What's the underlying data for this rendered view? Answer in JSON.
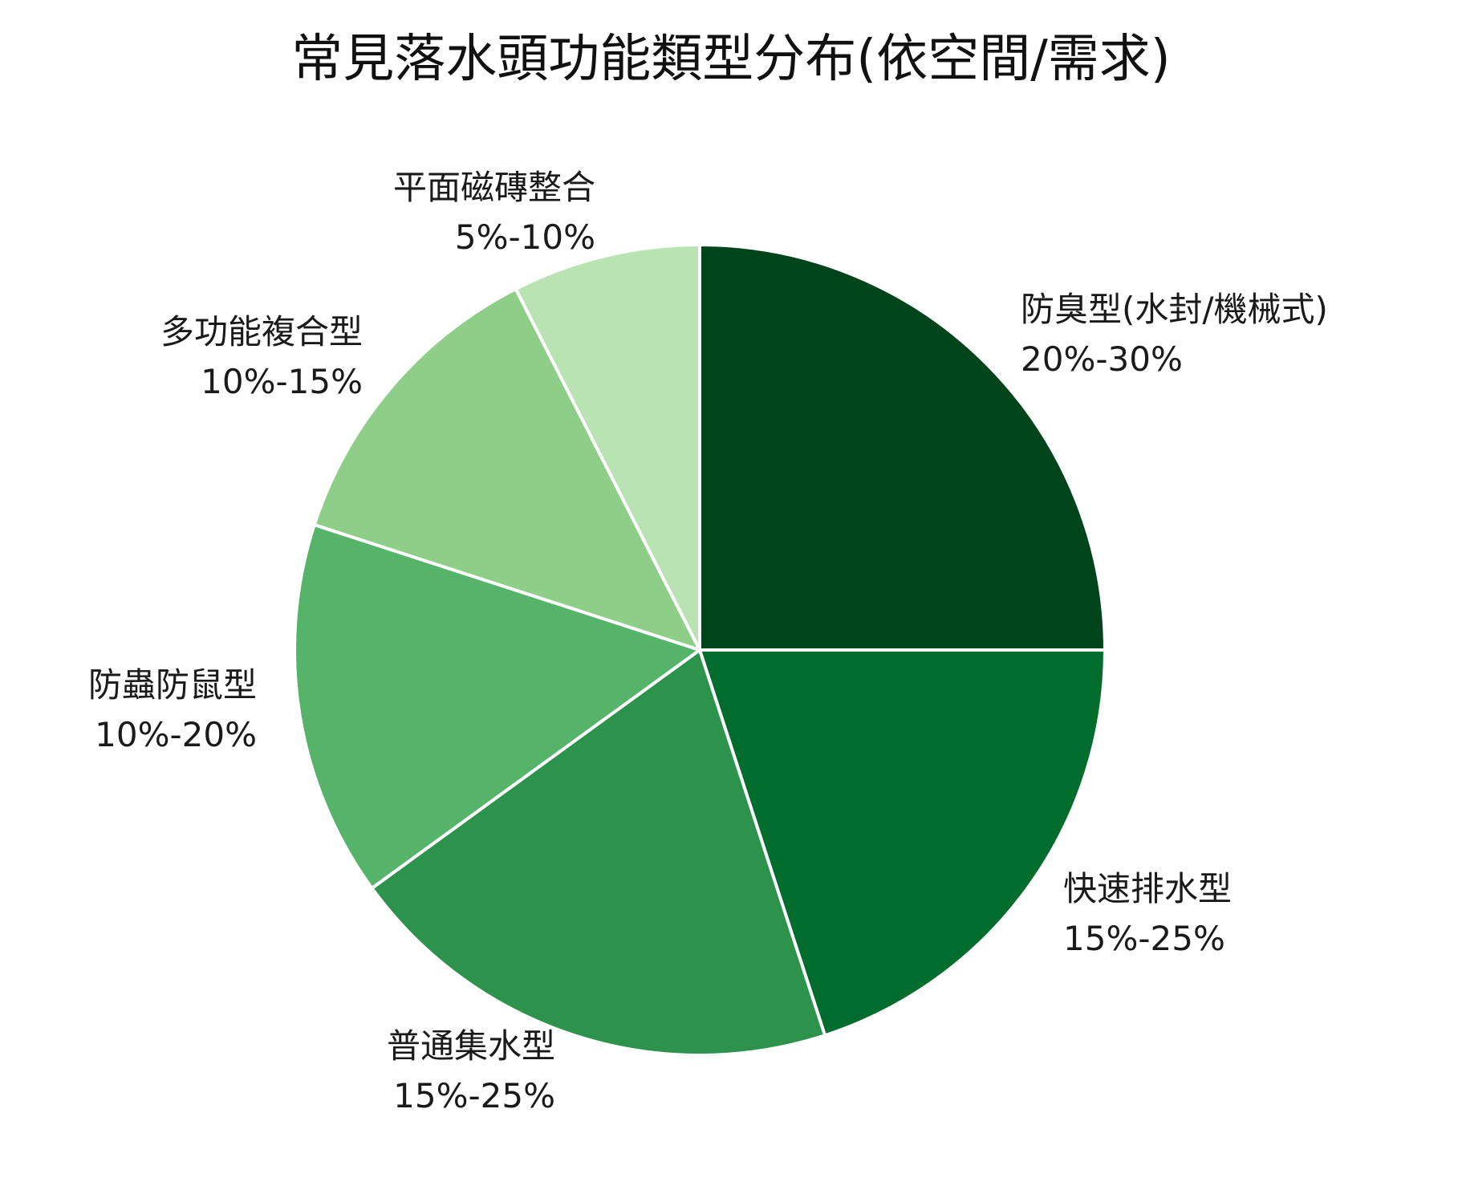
{
  "chart_data": {
    "type": "pie",
    "title": "常見落水頭功能類型分布(依空間/需求)",
    "start_angle": "top",
    "direction": "clockwise",
    "slices": [
      {
        "name": "防臭型(水封/機械式)",
        "range": "20%-30%",
        "value": 25,
        "color": "#00441b"
      },
      {
        "name": "快速排水型",
        "range": "15%-25%",
        "value": 20,
        "color": "#006d2c"
      },
      {
        "name": "普通集水型",
        "range": "15%-25%",
        "value": 20,
        "color": "#2d924c"
      },
      {
        "name": "防蟲防鼠型",
        "range": "10%-20%",
        "value": 15,
        "color": "#55b46a"
      },
      {
        "name": "多功能複合型",
        "range": "10%-15%",
        "value": 12.5,
        "color": "#8ece88"
      },
      {
        "name": "平面磁磚整合",
        "range": "5%-10%",
        "value": 7.5,
        "color": "#b9e3b3"
      }
    ]
  }
}
